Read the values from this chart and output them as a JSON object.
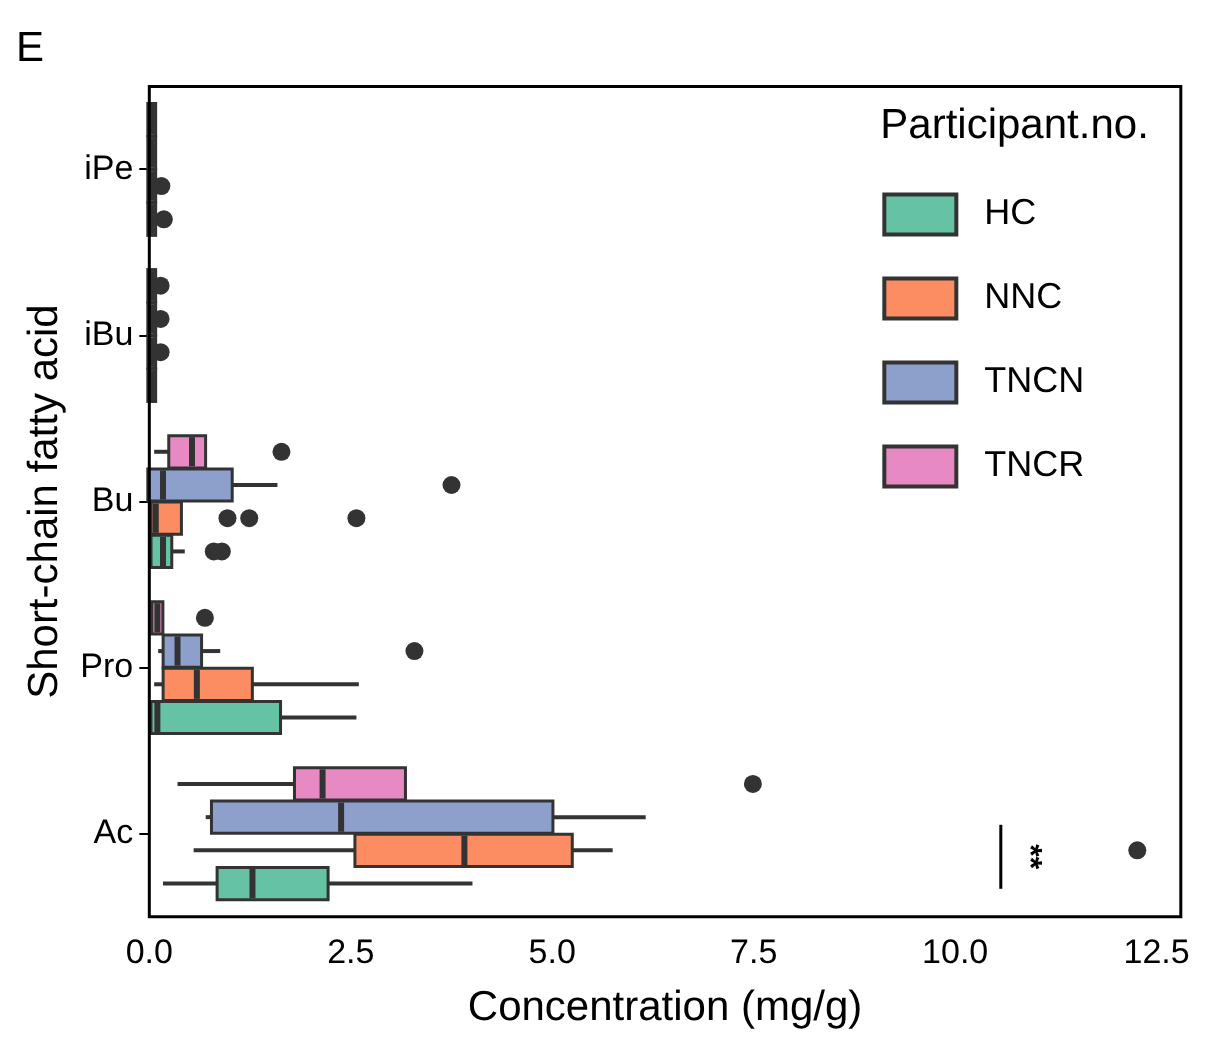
{
  "chart_data": {
    "type": "box",
    "title": "E",
    "orientation": "horizontal",
    "xlabel": "Concentration (mg/g)",
    "ylabel": "Short-chain fatty acid",
    "legend_title": "Participant.no.",
    "legend": "top right",
    "grid": false,
    "categories": [
      "iPe",
      "iBu",
      "Bu",
      "Pro",
      "Ac"
    ],
    "xlim": [
      0,
      12.8
    ],
    "xticks": [
      {
        "value": 0,
        "label": "0.0"
      },
      2.5,
      {
        "value": 5,
        "label": "5.0"
      },
      7.5,
      {
        "value": 10,
        "label": "10.0"
      },
      12.5
    ],
    "series": [
      {
        "name": "HC",
        "color": "#66c2a5",
        "boxes": [
          {
            "low": 0,
            "q1": 0,
            "median": 0.03,
            "q3": 0.06,
            "high": 0.06,
            "outliers": [
              0.18
            ]
          },
          {
            "low": 0,
            "q1": 0,
            "median": 0.03,
            "q3": 0.06,
            "high": 0.06
          },
          {
            "low": 0.04,
            "q1": 0.04,
            "median": 0.17,
            "q3": 0.26,
            "high": 0.44,
            "outliers": [
              0.8,
              0.9
            ]
          },
          {
            "low": 0.04,
            "q1": 0.04,
            "median": 0.1,
            "q3": 1.61,
            "high": 2.57
          },
          {
            "low": 0.17,
            "q1": 0.86,
            "median": 1.28,
            "q3": 2.2,
            "high": 4.01
          }
        ]
      },
      {
        "name": "NNC",
        "color": "#fc8d62",
        "boxes": [
          {
            "low": 0,
            "q1": 0,
            "median": 0.03,
            "q3": 0.06,
            "high": 0.06,
            "outliers": [
              0.15
            ]
          },
          {
            "low": 0,
            "q1": 0,
            "median": 0.03,
            "q3": 0.06,
            "high": 0.06,
            "outliers": [
              0.14
            ]
          },
          {
            "low": 0.04,
            "q1": 0.04,
            "median": 0.08,
            "q3": 0.38,
            "high": 0.38,
            "outliers": [
              0.97,
              1.24,
              2.57
            ]
          },
          {
            "low": 0.06,
            "q1": 0.19,
            "median": 0.59,
            "q3": 1.26,
            "high": 2.6
          },
          {
            "low": 0.55,
            "q1": 2.57,
            "median": 3.91,
            "q3": 5.23,
            "high": 5.75,
            "outliers": [
              12.26
            ]
          }
        ]
      },
      {
        "name": "TNCN",
        "color": "#8da0cb",
        "boxes": [
          {
            "low": 0,
            "q1": 0,
            "median": 0.03,
            "q3": 0.06,
            "high": 0.06
          },
          {
            "low": 0,
            "q1": 0,
            "median": 0.03,
            "q3": 0.06,
            "high": 0.06,
            "outliers": [
              0.14
            ]
          },
          {
            "low": 0,
            "q1": 0,
            "median": 0.17,
            "q3": 1.01,
            "high": 1.59,
            "outliers": [
              3.75
            ]
          },
          {
            "low": 0.11,
            "q1": 0.19,
            "median": 0.35,
            "q3": 0.63,
            "high": 0.88,
            "outliers": [
              3.29
            ]
          },
          {
            "low": 0.7,
            "q1": 0.79,
            "median": 2.38,
            "q3": 4.99,
            "high": 6.16
          }
        ]
      },
      {
        "name": "TNCR",
        "color": "#e78ac3",
        "boxes": [
          {
            "low": 0,
            "q1": 0,
            "median": 0.03,
            "q3": 0.06,
            "high": 0.06
          },
          {
            "low": 0,
            "q1": 0,
            "median": 0.03,
            "q3": 0.06,
            "high": 0.06,
            "outliers": [
              0.14
            ]
          },
          {
            "low": 0.06,
            "q1": 0.26,
            "median": 0.53,
            "q3": 0.68,
            "high": 0.68,
            "outliers": [
              1.64
            ]
          },
          {
            "low": 0.05,
            "q1": 0.05,
            "median": 0.1,
            "q3": 0.15,
            "high": 0.15,
            "outliers": [
              0.69
            ]
          },
          {
            "low": 0.35,
            "q1": 1.82,
            "median": 2.15,
            "q3": 3.16,
            "high": 3.16,
            "outliers": [
              7.49
            ]
          }
        ]
      }
    ],
    "annotations": [
      "**"
    ]
  }
}
